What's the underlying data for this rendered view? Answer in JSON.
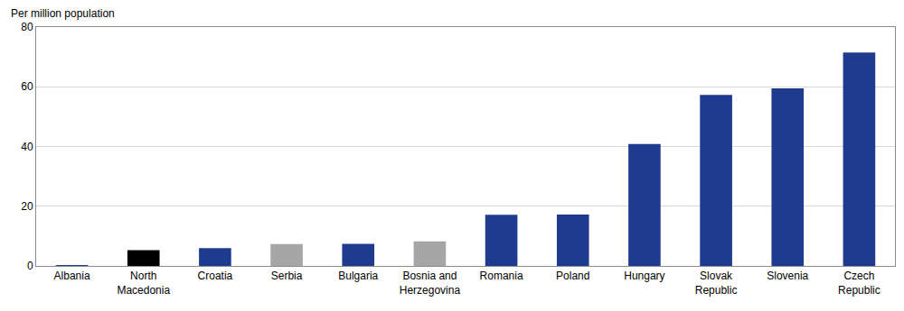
{
  "chart_data": {
    "type": "bar",
    "ylabel": "Per million population",
    "categories": [
      "Albania",
      "North Macedonia",
      "Croatia",
      "Serbia",
      "Bulgaria",
      "Bosnia and Herzegovina",
      "Romania",
      "Poland",
      "Hungary",
      "Slovak Republic",
      "Slovenia",
      "Czech Republic"
    ],
    "values": [
      0.3,
      5.3,
      6,
      7.3,
      7.4,
      8.2,
      17.1,
      17.2,
      40.8,
      57.3,
      59.5,
      71.5
    ],
    "colors": [
      "#1f3b8f",
      "#000000",
      "#1f3b8f",
      "#a6a6a6",
      "#1f3b8f",
      "#a6a6a6",
      "#1f3b8f",
      "#1f3b8f",
      "#1f3b8f",
      "#1f3b8f",
      "#1f3b8f",
      "#1f3b8f"
    ],
    "ylim": [
      0,
      80
    ],
    "yticks": [
      0,
      20,
      40,
      60,
      80
    ],
    "grid": true
  }
}
